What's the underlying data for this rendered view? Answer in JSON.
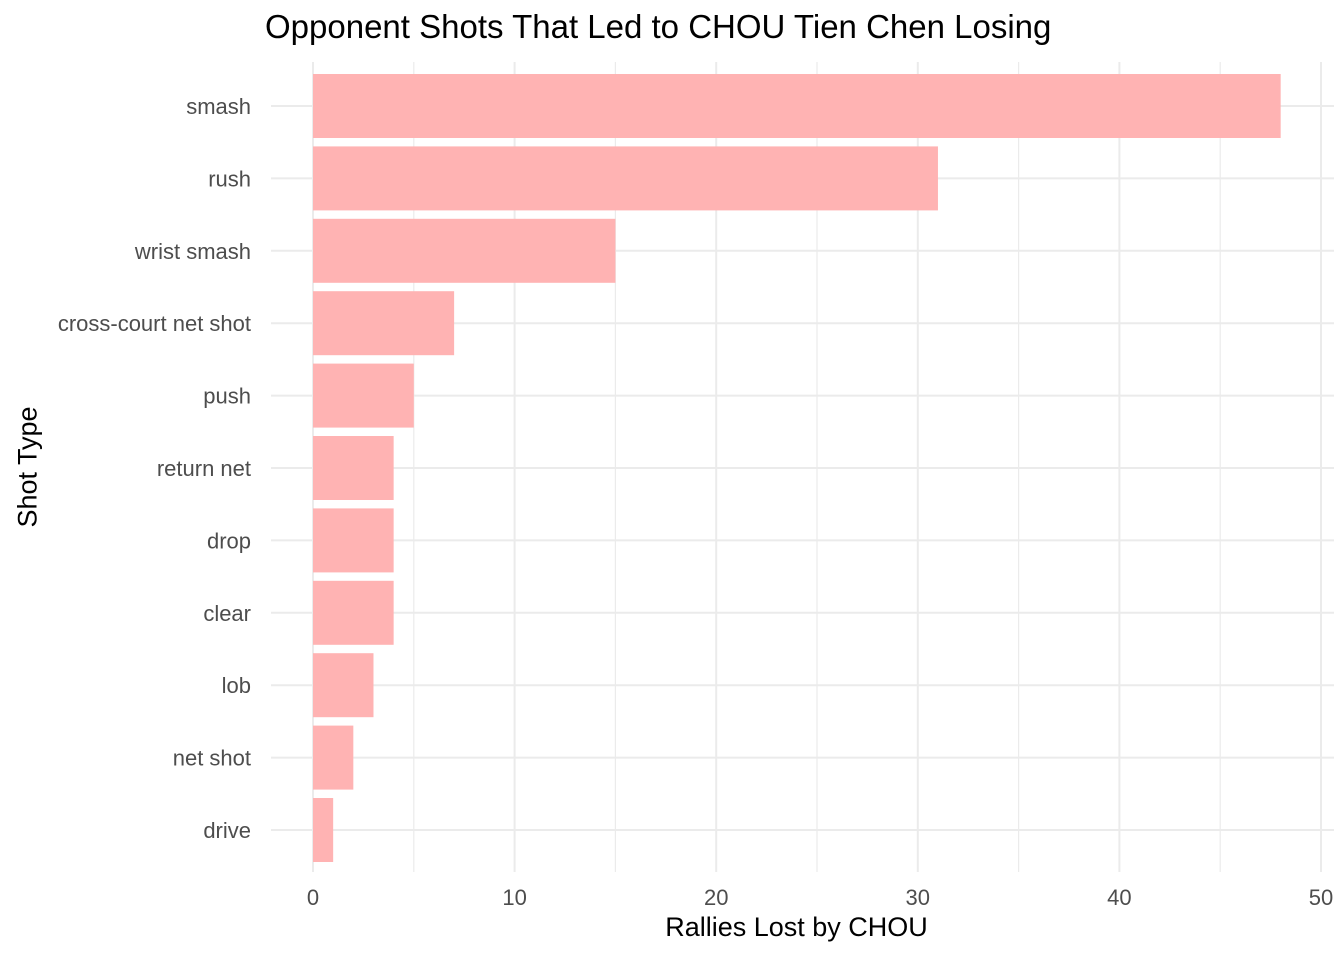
{
  "chart_data": {
    "type": "bar",
    "orientation": "horizontal",
    "title": "Opponent Shots That Led to CHOU Tien Chen Losing",
    "xlabel": "Rallies Lost by CHOU",
    "ylabel": "Shot Type",
    "categories": [
      "smash",
      "rush",
      "wrist smash",
      "cross-court net shot",
      "push",
      "return net",
      "drop",
      "clear",
      "lob",
      "net shot",
      "drive"
    ],
    "values": [
      48,
      31,
      15,
      7,
      5,
      4,
      4,
      4,
      3,
      2,
      1
    ],
    "xlim": [
      0,
      50
    ],
    "x_ticks": [
      "0",
      "10",
      "20",
      "30",
      "40",
      "50"
    ],
    "grid": true,
    "bar_color": "#FFB3B3",
    "grid_color": "#EBEBEB",
    "tick_label_color": "#4D4D4D"
  }
}
